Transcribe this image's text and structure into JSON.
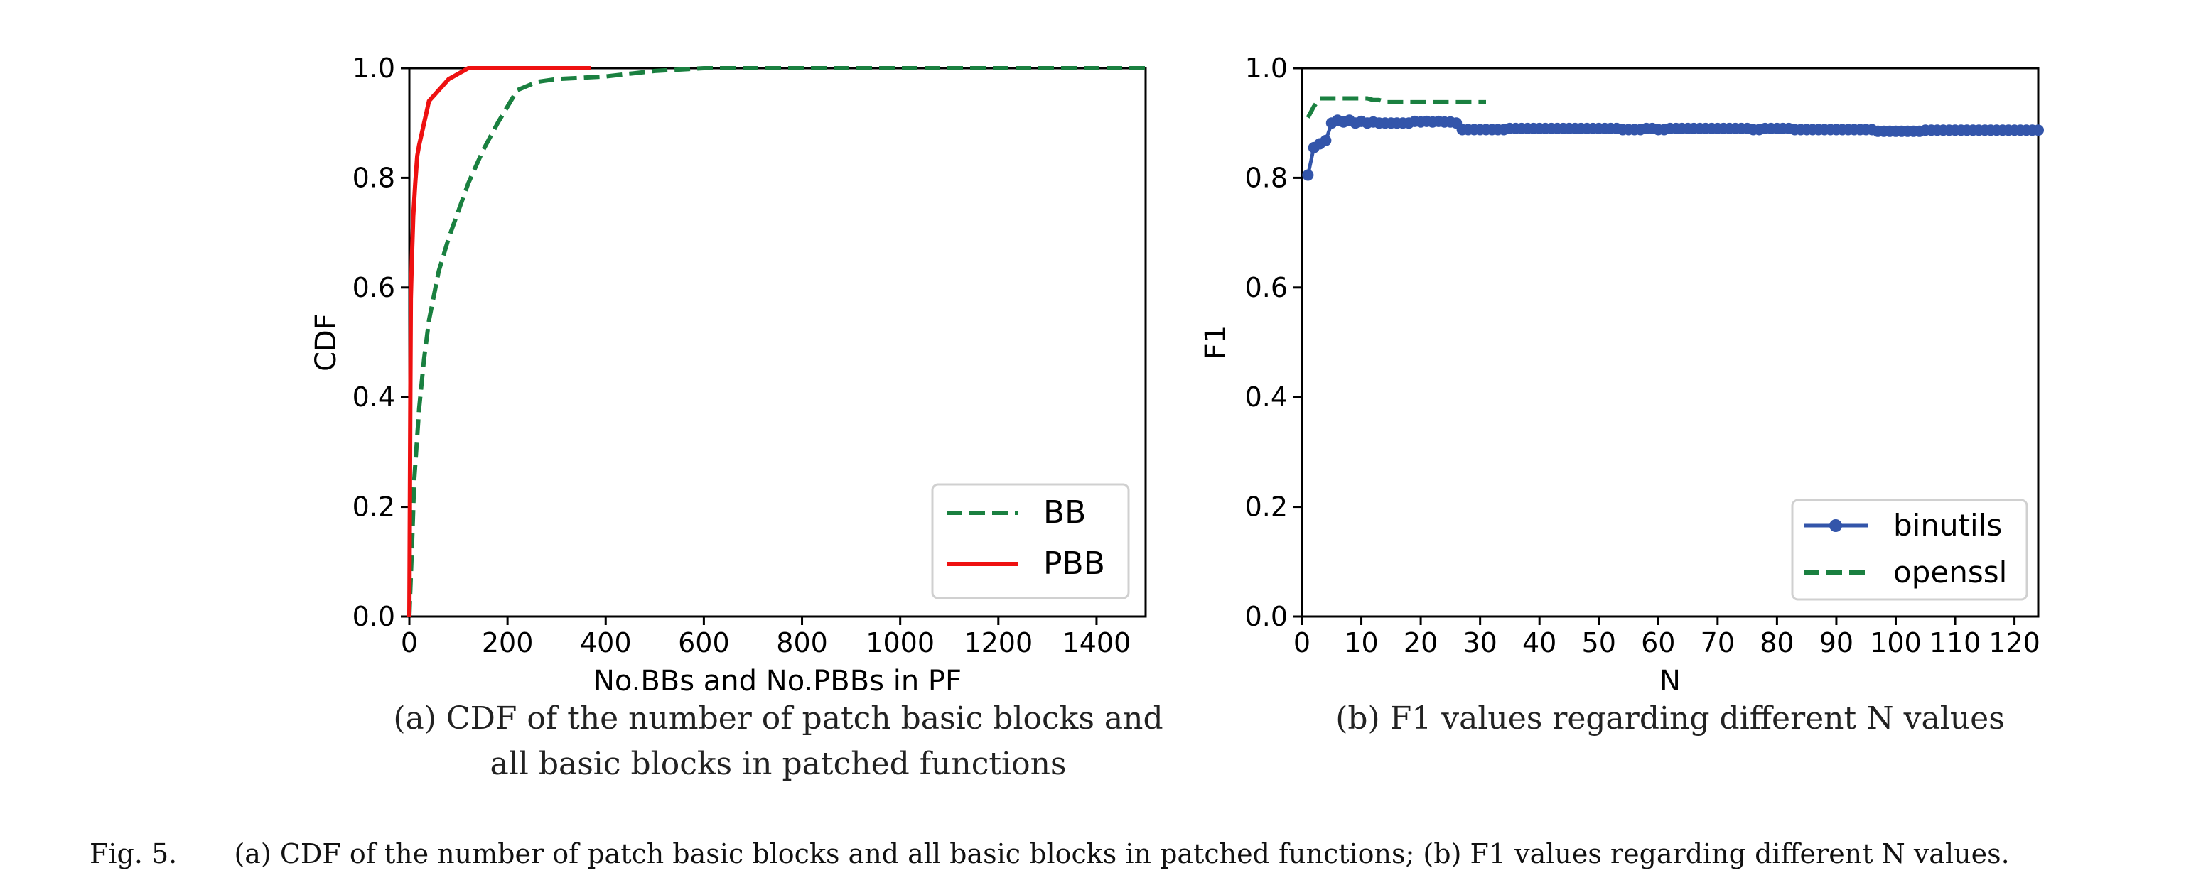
{
  "chart_data": [
    {
      "type": "line",
      "title": "",
      "xlabel": "No.BBs and No.PBBs in PF",
      "ylabel": "CDF",
      "xlim": [
        0,
        1500
      ],
      "ylim": [
        0,
        1.0
      ],
      "xticks": [
        "0",
        "200",
        "400",
        "600",
        "800",
        "1000",
        "1200",
        "1400"
      ],
      "yticks": [
        "0.0",
        "0.2",
        "0.4",
        "0.6",
        "0.8",
        "1.0"
      ],
      "grid": false,
      "legend_position": "bottom-right",
      "subcaption": "(a) CDF of the number of patch basic blocks and all basic blocks in patched functions",
      "subcaption_lines": [
        "(a) CDF of the number of patch  basic blocks and",
        "all basic blocks in patched functions"
      ],
      "series": [
        {
          "name": "BB",
          "color": "#1a8040",
          "style": "dashed",
          "x": [
            0,
            5,
            10,
            20,
            30,
            40,
            60,
            80,
            100,
            120,
            150,
            180,
            220,
            260,
            300,
            400,
            500,
            600,
            800,
            1000,
            1200,
            1400,
            1500
          ],
          "y": [
            0.0,
            0.12,
            0.25,
            0.38,
            0.47,
            0.54,
            0.63,
            0.69,
            0.74,
            0.79,
            0.85,
            0.9,
            0.96,
            0.975,
            0.98,
            0.985,
            0.995,
            1.0,
            1.0,
            1.0,
            1.0,
            1.0,
            1.0
          ]
        },
        {
          "name": "PBB",
          "color": "#ee1111",
          "style": "solid",
          "x": [
            0,
            1,
            2,
            3,
            5,
            8,
            12,
            16,
            20,
            25,
            30,
            35,
            40,
            50,
            55,
            60,
            70,
            80,
            90,
            100,
            110,
            120,
            130,
            200,
            370
          ],
          "y": [
            0.0,
            0.2,
            0.4,
            0.58,
            0.65,
            0.73,
            0.79,
            0.84,
            0.86,
            0.88,
            0.9,
            0.92,
            0.94,
            0.95,
            0.955,
            0.96,
            0.97,
            0.98,
            0.985,
            0.99,
            0.995,
            1.0,
            1.0,
            1.0,
            1.0
          ]
        }
      ]
    },
    {
      "type": "line",
      "title": "",
      "xlabel": "N",
      "ylabel": "F1",
      "xlim": [
        0,
        124
      ],
      "ylim": [
        0,
        1.0
      ],
      "xticks": [
        "0",
        "10",
        "20",
        "30",
        "40",
        "50",
        "60",
        "70",
        "80",
        "90",
        "100",
        "110",
        "120"
      ],
      "yticks": [
        "0.0",
        "0.2",
        "0.4",
        "0.6",
        "0.8",
        "1.0"
      ],
      "grid": false,
      "legend_position": "bottom-right",
      "subcaption": "(b)  F1 values regarding different N values",
      "series": [
        {
          "name": "binutils",
          "color": "#3355aa",
          "style": "solid-markers",
          "x": [
            1,
            2,
            3,
            4,
            5,
            6,
            7,
            8,
            9,
            10,
            11,
            12,
            13,
            14,
            15,
            16,
            17,
            18,
            19,
            20,
            21,
            22,
            23,
            24,
            25,
            26,
            27,
            28,
            29,
            30,
            31,
            32,
            33,
            34,
            35,
            36,
            37,
            38,
            39,
            40,
            41,
            42,
            43,
            44,
            45,
            46,
            47,
            48,
            49,
            50,
            51,
            52,
            53,
            54,
            55,
            56,
            57,
            58,
            59,
            60,
            61,
            62,
            63,
            64,
            65,
            66,
            67,
            68,
            69,
            70,
            71,
            72,
            73,
            74,
            75,
            76,
            77,
            78,
            79,
            80,
            81,
            82,
            83,
            84,
            85,
            86,
            87,
            88,
            89,
            90,
            91,
            92,
            93,
            94,
            95,
            96,
            97,
            98,
            99,
            100,
            101,
            102,
            103,
            104,
            105,
            106,
            107,
            108,
            109,
            110,
            111,
            112,
            113,
            114,
            115,
            116,
            117,
            118,
            119,
            120,
            121,
            122,
            123,
            124
          ],
          "y": [
            0.805,
            0.855,
            0.862,
            0.868,
            0.9,
            0.905,
            0.902,
            0.905,
            0.9,
            0.903,
            0.9,
            0.902,
            0.9,
            0.9,
            0.9,
            0.9,
            0.9,
            0.9,
            0.903,
            0.902,
            0.903,
            0.902,
            0.903,
            0.902,
            0.902,
            0.9,
            0.888,
            0.888,
            0.888,
            0.888,
            0.888,
            0.888,
            0.888,
            0.888,
            0.89,
            0.89,
            0.89,
            0.89,
            0.89,
            0.89,
            0.89,
            0.89,
            0.89,
            0.89,
            0.89,
            0.89,
            0.89,
            0.89,
            0.89,
            0.89,
            0.89,
            0.89,
            0.89,
            0.888,
            0.888,
            0.888,
            0.888,
            0.89,
            0.89,
            0.888,
            0.888,
            0.89,
            0.89,
            0.89,
            0.89,
            0.89,
            0.89,
            0.89,
            0.89,
            0.89,
            0.89,
            0.89,
            0.89,
            0.89,
            0.89,
            0.888,
            0.888,
            0.89,
            0.89,
            0.89,
            0.89,
            0.89,
            0.888,
            0.888,
            0.888,
            0.888,
            0.888,
            0.888,
            0.888,
            0.888,
            0.888,
            0.888,
            0.888,
            0.888,
            0.888,
            0.888,
            0.885,
            0.885,
            0.885,
            0.885,
            0.885,
            0.885,
            0.885,
            0.885,
            0.887,
            0.887,
            0.887,
            0.887,
            0.887,
            0.887,
            0.887,
            0.887,
            0.887,
            0.887,
            0.887,
            0.887,
            0.887,
            0.887,
            0.887,
            0.887,
            0.887,
            0.887,
            0.887,
            0.887
          ]
        },
        {
          "name": "openssl",
          "color": "#1a8040",
          "style": "dashed",
          "x": [
            1,
            2,
            3,
            4,
            5,
            6,
            7,
            8,
            9,
            10,
            11,
            12,
            13,
            14,
            15,
            16,
            17,
            18,
            19,
            20,
            21,
            22,
            23,
            24,
            25,
            26,
            27,
            28,
            29,
            30,
            31
          ],
          "y": [
            0.91,
            0.93,
            0.945,
            0.945,
            0.945,
            0.945,
            0.945,
            0.945,
            0.945,
            0.945,
            0.945,
            0.942,
            0.942,
            0.938,
            0.938,
            0.938,
            0.938,
            0.938,
            0.938,
            0.938,
            0.938,
            0.938,
            0.938,
            0.938,
            0.938,
            0.938,
            0.938,
            0.938,
            0.938,
            0.938,
            0.938
          ]
        }
      ]
    }
  ],
  "figure": {
    "label": "Fig. 5.",
    "caption": "(a) CDF of the number of patch basic blocks and all basic blocks in patched functions; (b) F1 values regarding different N values."
  }
}
